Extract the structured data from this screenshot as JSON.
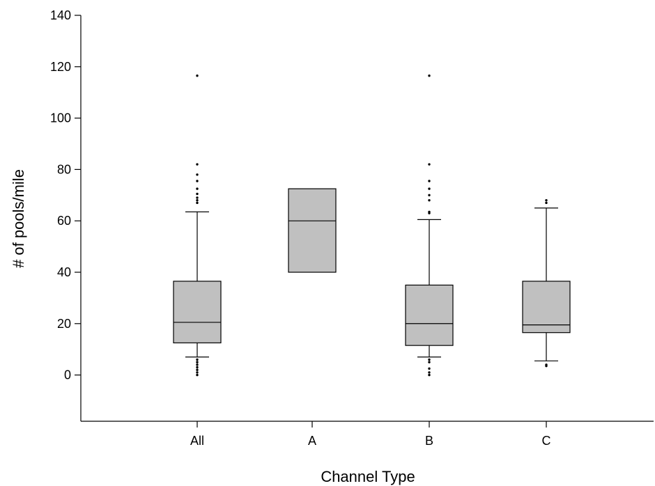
{
  "chart_data": {
    "type": "box",
    "xlabel": "Channel Type",
    "ylabel": "# of pools/mile",
    "ylim": [
      -18,
      140
    ],
    "yticks": [
      0,
      20,
      40,
      60,
      80,
      100,
      120,
      140
    ],
    "grid": false,
    "box_fill": "#c0c0c0",
    "categories": [
      "All",
      "A",
      "B",
      "C"
    ],
    "boxes": [
      {
        "category": "All",
        "whisker_low": 7,
        "q1": 12.5,
        "median": 20.5,
        "q3": 36.5,
        "whisker_high": 63.5,
        "outliers": [
          0,
          1,
          2,
          3,
          4,
          5,
          6,
          67,
          68,
          69,
          70.5,
          72.5,
          75.5,
          78,
          82,
          116.5
        ]
      },
      {
        "category": "A",
        "whisker_low": null,
        "q1": 40,
        "median": 60,
        "q3": 72.5,
        "whisker_high": null,
        "outliers": []
      },
      {
        "category": "B",
        "whisker_low": 7,
        "q1": 11.5,
        "median": 20,
        "q3": 35,
        "whisker_high": 60.5,
        "outliers": [
          0,
          1,
          2.5,
          5,
          6,
          63,
          63.5,
          68,
          70,
          72.5,
          75.5,
          82,
          116.5
        ]
      },
      {
        "category": "C",
        "whisker_low": 5.5,
        "q1": 16.5,
        "median": 19.5,
        "q3": 36.5,
        "whisker_high": 65,
        "outliers": [
          3.5,
          4,
          67,
          68
        ]
      }
    ]
  }
}
